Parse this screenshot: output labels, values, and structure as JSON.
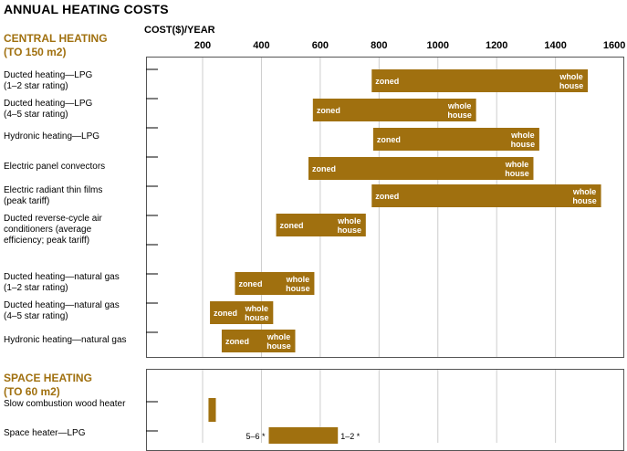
{
  "title": "ANNUAL HEATING COSTS",
  "axis_title": "COST($)/YEAR",
  "ticks": [
    "200",
    "400",
    "600",
    "800",
    "1000",
    "1200",
    "1400",
    "1600"
  ],
  "central": {
    "heading_line1": "CENTRAL HEATING",
    "heading_line2": "(TO 150 m2)"
  },
  "space": {
    "heading_line1": "SPACE HEATING",
    "heading_line2": "(TO 60 m2)"
  },
  "labels": {
    "zoned": "zoned",
    "whole": "whole",
    "house": "house",
    "left_rating": "5–6 *",
    "right_rating": "1–2 *"
  },
  "colors": {
    "bar": "#a0700f",
    "heading": "#a0700f",
    "grid": "#cccccc"
  },
  "chart_data": {
    "type": "bar",
    "orientation": "horizontal-range",
    "title": "ANNUAL HEATING COSTS",
    "xlabel": "COST($)/YEAR",
    "xlim": [
      0,
      1600
    ],
    "xticks": [
      200,
      400,
      600,
      800,
      1000,
      1200,
      1400,
      1600
    ],
    "grid": true,
    "groups": [
      {
        "name": "CENTRAL HEATING (TO 150 m2)",
        "items": [
          {
            "label": [
              "Ducted heating—LPG",
              "(1–2 star rating)"
            ],
            "low": 775,
            "high": 1510
          },
          {
            "label": [
              "Ducted heating—LPG",
              "(4–5 star rating)"
            ],
            "low": 575,
            "high": 1130
          },
          {
            "label": [
              "Hydronic heating—LPG"
            ],
            "low": 780,
            "high": 1345
          },
          {
            "label": [
              "Electric panel convectors"
            ],
            "low": 560,
            "high": 1325
          },
          {
            "label": [
              "Electric radiant thin films",
              "(peak tariff)"
            ],
            "low": 775,
            "high": 1555
          },
          {
            "label": [
              "Ducted reverse-cycle air",
              "conditioners (average",
              "efficiency; peak tariff)"
            ],
            "low": 450,
            "high": 755
          },
          {
            "label": [
              "Ducted heating—natural gas",
              "(1–2 star rating)"
            ],
            "low": 310,
            "high": 580
          },
          {
            "label": [
              "Ducted heating—natural gas",
              "(4–5 star rating)"
            ],
            "low": 225,
            "high": 440
          },
          {
            "label": [
              "Hydronic heating—natural gas"
            ],
            "low": 265,
            "high": 515
          }
        ]
      },
      {
        "name": "SPACE HEATING (TO 60 m2)",
        "items": [
          {
            "label": [
              "Slow combustion wood heater"
            ],
            "low": 220,
            "high": 245
          },
          {
            "label": [
              "Space heater—LPG"
            ],
            "low": 425,
            "high": 660
          }
        ]
      }
    ]
  }
}
